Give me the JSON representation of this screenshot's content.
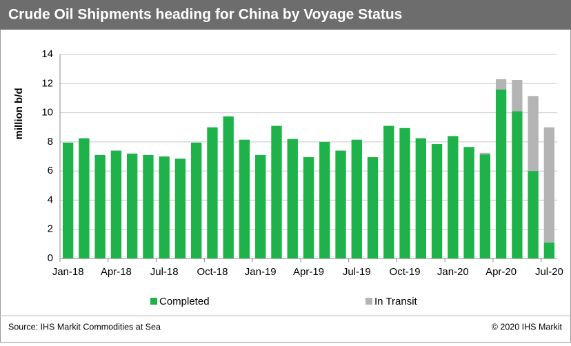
{
  "chart_data": {
    "type": "stacked_bar",
    "title": "Crude Oil Shipments heading for China by Voyage Status",
    "y_label": "million b/d",
    "categories": [
      "Jan-18",
      null,
      null,
      "Apr-18",
      null,
      null,
      "Jul-18",
      null,
      null,
      "Oct-18",
      null,
      null,
      "Jan-19",
      null,
      null,
      "Apr-19",
      null,
      null,
      "Jul-19",
      null,
      null,
      "Oct-19",
      null,
      null,
      "Jan-20",
      null,
      null,
      "Apr-20",
      null,
      null,
      "Jul-20"
    ],
    "series": [
      {
        "name": "Completed",
        "color": "#1fb14a",
        "values": [
          7.95,
          8.25,
          7.1,
          7.4,
          7.2,
          7.1,
          7.0,
          6.85,
          7.95,
          9.0,
          9.75,
          8.15,
          7.1,
          9.1,
          8.2,
          6.95,
          8.0,
          7.4,
          8.15,
          6.95,
          9.1,
          8.95,
          8.25,
          7.85,
          8.4,
          7.65,
          7.15,
          11.6,
          10.1,
          6.0,
          1.1
        ]
      },
      {
        "name": "In Transit",
        "color": "#b4b4b4",
        "values": [
          0,
          0,
          0,
          0,
          0,
          0,
          0,
          0,
          0,
          0,
          0,
          0,
          0,
          0,
          0,
          0,
          0,
          0,
          0,
          0,
          0,
          0,
          0,
          0,
          0,
          0,
          0.1,
          0.7,
          2.15,
          5.15,
          7.9
        ]
      }
    ],
    "ylim": [
      0,
      14
    ],
    "yticks": [
      0,
      2,
      4,
      6,
      8,
      10,
      12,
      14
    ],
    "grid": true,
    "source": "Source: IHS Markit Commodities at Sea",
    "copyright": "© 2020 IHS Markit"
  }
}
